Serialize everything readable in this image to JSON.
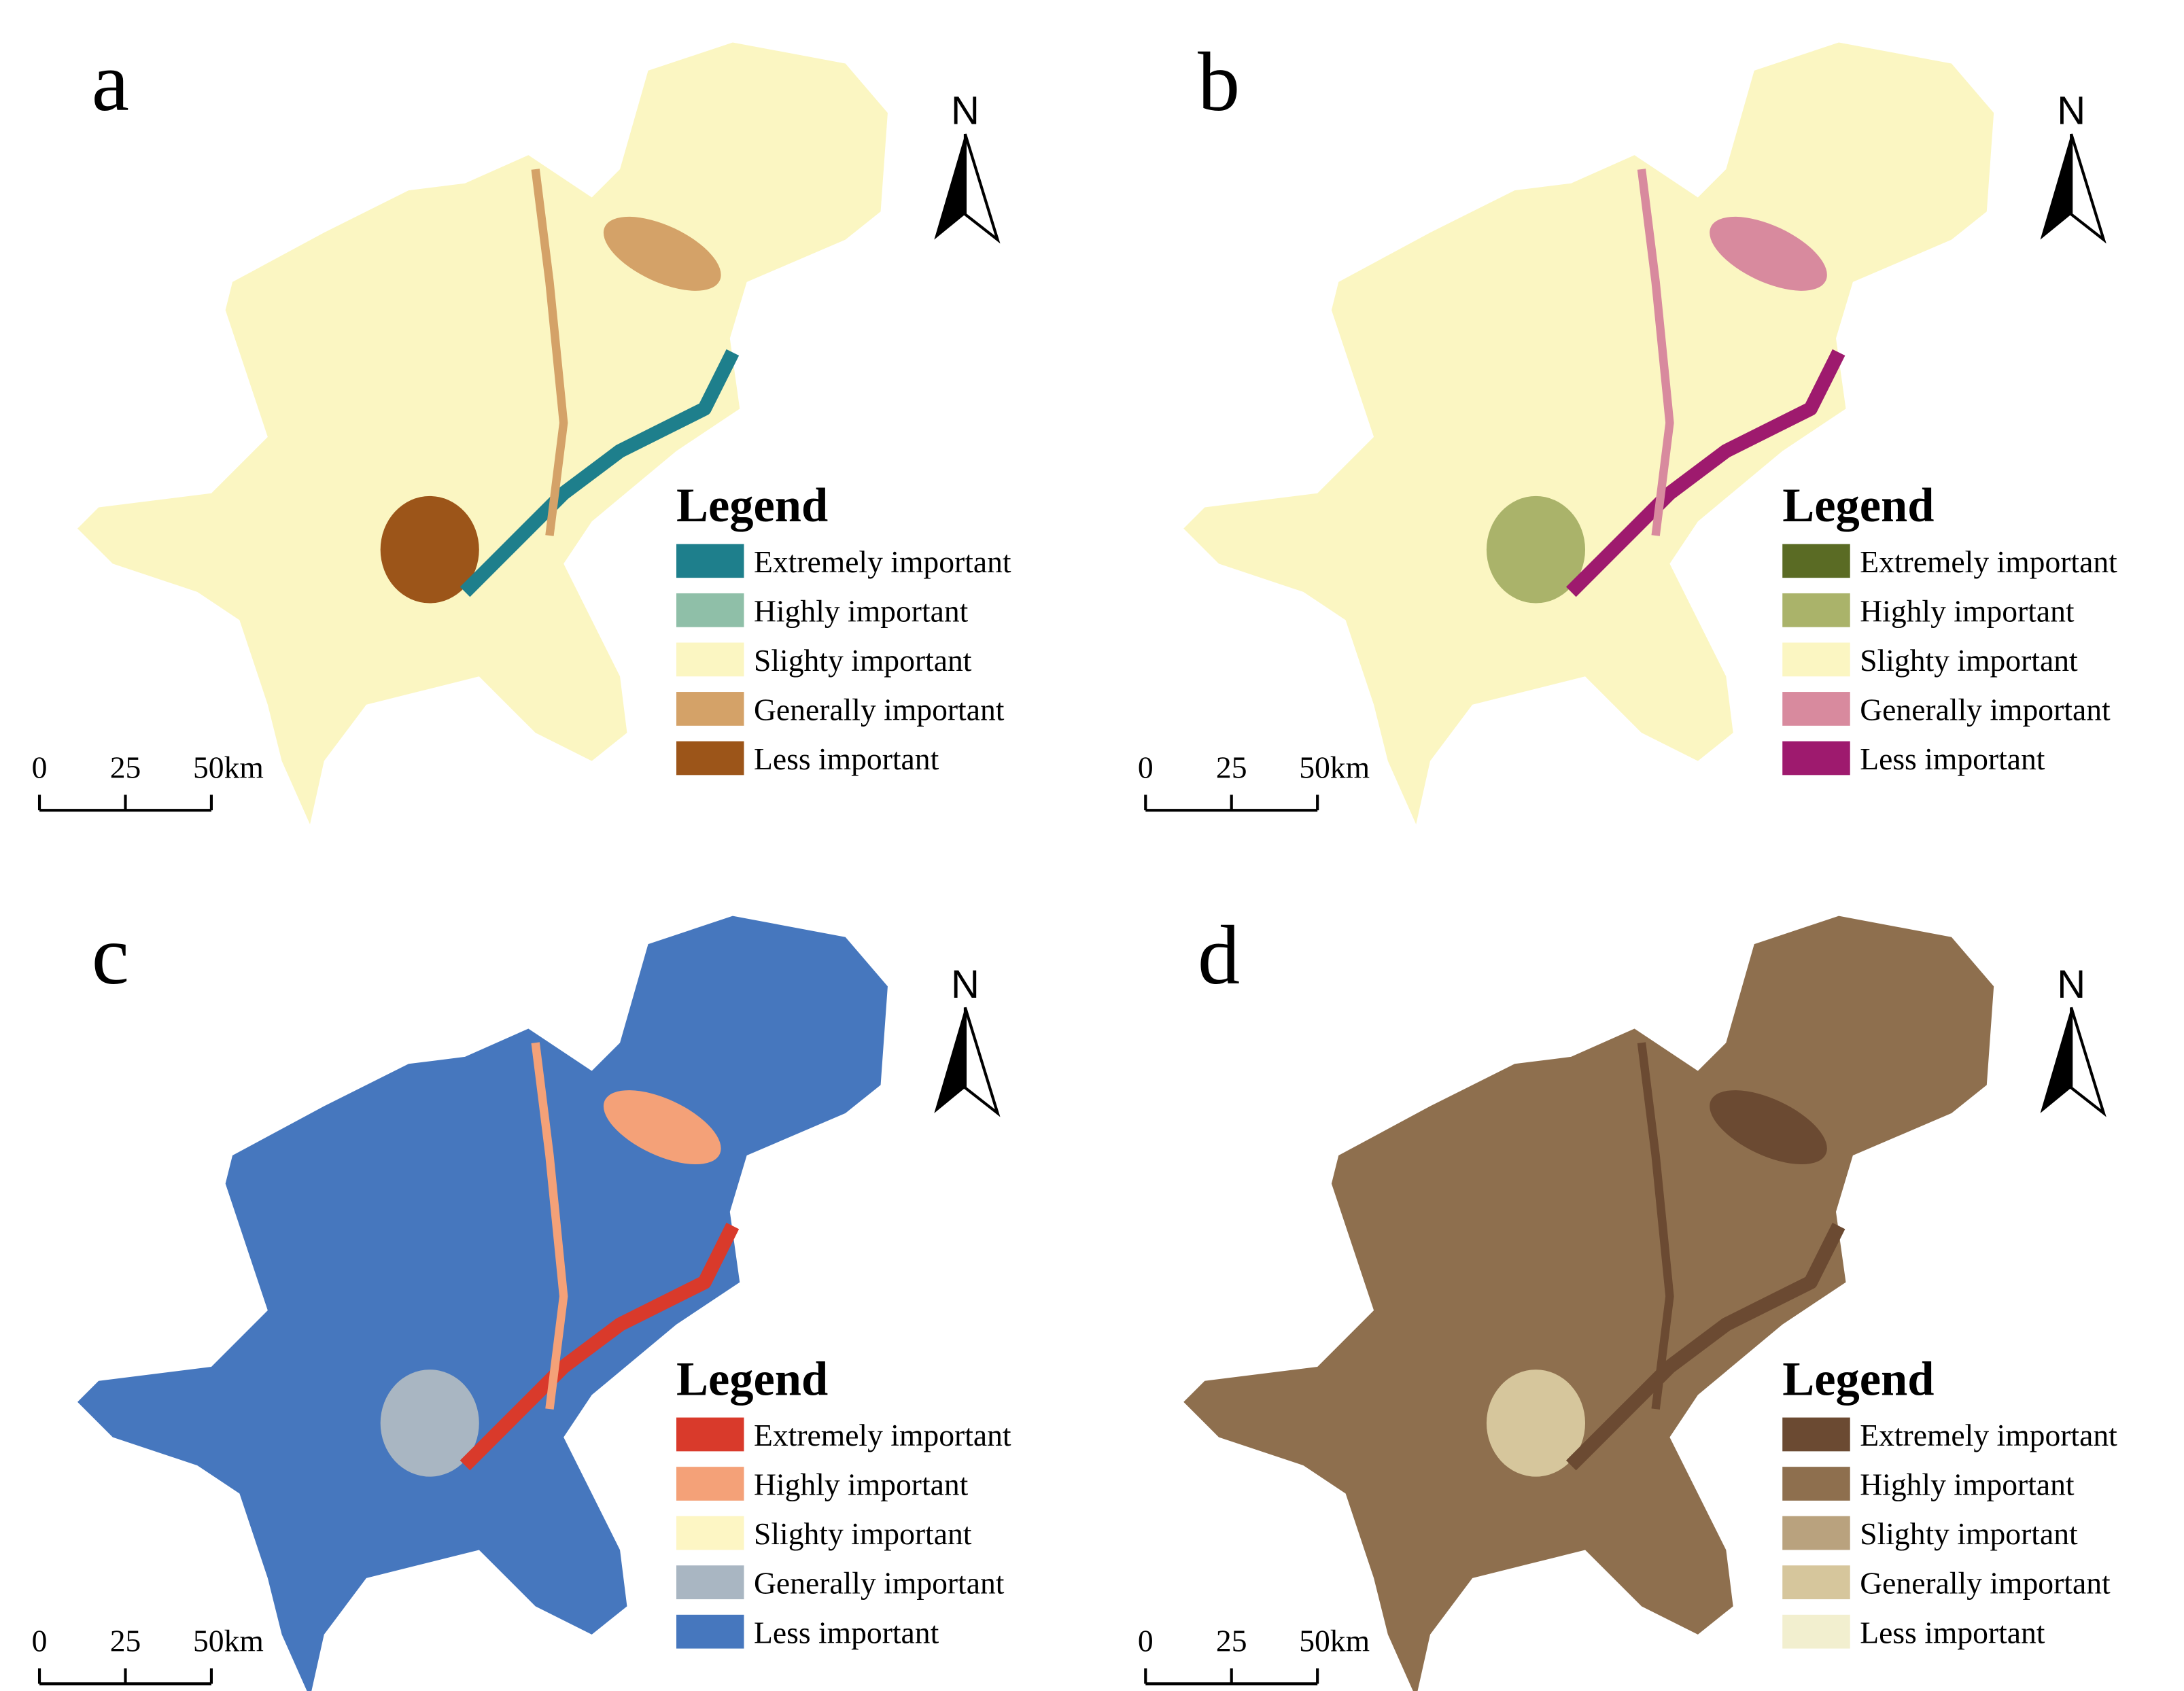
{
  "panels": [
    {
      "label": "a",
      "north": "N",
      "scale_bar": {
        "ticks": [
          "0",
          "25",
          "50km"
        ]
      },
      "legend": {
        "title": "Legend",
        "items": [
          {
            "label": "Extremely important",
            "color": "#1e7f8c"
          },
          {
            "label": "Highly important",
            "color": "#8fbfa8"
          },
          {
            "label": "Slighty important",
            "color": "#fbf6c2"
          },
          {
            "label": "Generally important",
            "color": "#d4a268"
          },
          {
            "label": "Less important",
            "color": "#9c5519"
          }
        ]
      }
    },
    {
      "label": "b",
      "north": "N",
      "scale_bar": {
        "ticks": [
          "0",
          "25",
          "50km"
        ]
      },
      "legend": {
        "title": "Legend",
        "items": [
          {
            "label": "Extremely important",
            "color": "#5a6b24"
          },
          {
            "label": "Highly important",
            "color": "#aab36a"
          },
          {
            "label": "Slighty important",
            "color": "#fbf6c2"
          },
          {
            "label": "Generally important",
            "color": "#d88a9e"
          },
          {
            "label": "Less important",
            "color": "#9e1a6e"
          }
        ]
      }
    },
    {
      "label": "c",
      "north": "N",
      "scale_bar": {
        "ticks": [
          "0",
          "25",
          "50km"
        ]
      },
      "legend": {
        "title": "Legend",
        "items": [
          {
            "label": "Extremely important",
            "color": "#d93a2b"
          },
          {
            "label": "Highly important",
            "color": "#f4a178"
          },
          {
            "label": "Slighty important",
            "color": "#fdf6c4"
          },
          {
            "label": "Generally important",
            "color": "#a9b6c2"
          },
          {
            "label": "Less important",
            "color": "#4677be"
          }
        ]
      }
    },
    {
      "label": "d",
      "north": "N",
      "scale_bar": {
        "ticks": [
          "0",
          "25",
          "50km"
        ]
      },
      "legend": {
        "title": "Legend",
        "items": [
          {
            "label": "Extremely important",
            "color": "#6b4a32"
          },
          {
            "label": "Highly important",
            "color": "#8e6f4e"
          },
          {
            "label": "Slighty important",
            "color": "#b9a27e"
          },
          {
            "label": "Generally important",
            "color": "#d6c69c"
          },
          {
            "label": "Less important",
            "color": "#f2efcf"
          }
        ]
      }
    }
  ]
}
